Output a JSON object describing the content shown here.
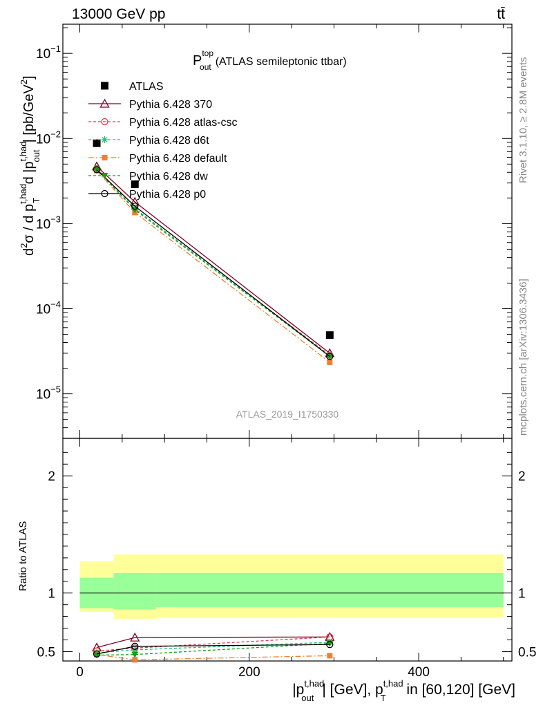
{
  "header": {
    "left": "13000 GeV pp",
    "right": "tt̄"
  },
  "side_labels": {
    "rivet": "Rivet 3.1.10, ≥ 2.8M events",
    "mcplots": "mcplots.cern.ch [arXiv:1306.3436]"
  },
  "watermark": "ATLAS_2019_I1750330",
  "chart_data": {
    "type": "scatter",
    "title": {
      "main": "P",
      "sup": "top",
      "sub": "out",
      "rest": "(ATLAS semileptonic ttbar)"
    },
    "ylabel": {
      "t1": "d",
      "t1sup": "2",
      "t2": "σ / d p",
      "t2sup": "t,had",
      "t2sub": "T",
      "t3": " d |p",
      "t3sup": "t,had",
      "t3sub": "out",
      "t4": "| [pb/GeV",
      "t4sup": "2",
      "t5": "]"
    },
    "xlabel": {
      "t1": "|p",
      "t1sup": "t,had",
      "t1sub": "out",
      "t2": "| [GeV], p",
      "t2sup": "t,had",
      "t2sub": "T",
      "t3": " in [60,120] [GeV]"
    },
    "ratio_ylabel": "Ratio to ATLAS",
    "xlim": [
      -20,
      510
    ],
    "ylim": [
      3e-06,
      0.22
    ],
    "ratio_ylim": [
      0.42,
      2.32
    ],
    "x_ticks": [
      0,
      200,
      400
    ],
    "x_tick_labels": [
      "0",
      "200",
      "400"
    ],
    "y_ticks": [
      1e-05,
      0.0001,
      0.001,
      0.01,
      0.1
    ],
    "y_tick_labels": [
      {
        "base": "10",
        "exp": "−5"
      },
      {
        "base": "10",
        "exp": "−4"
      },
      {
        "base": "10",
        "exp": "−3"
      },
      {
        "base": "10",
        "exp": "−2"
      },
      {
        "base": "10",
        "exp": "−1"
      }
    ],
    "ratio_ticks": [
      0.5,
      1,
      2
    ],
    "ratio_tick_labels": [
      "0.5",
      "1",
      "2"
    ],
    "legend_position": "top-left",
    "data": {
      "name": "ATLAS",
      "color": "#000000",
      "x": [
        20,
        65,
        295
      ],
      "y": [
        0.0088,
        0.0029,
        4.9e-05
      ]
    },
    "bins": [
      [
        0,
        40
      ],
      [
        40,
        90
      ],
      [
        90,
        500
      ]
    ],
    "bands": {
      "inner": [
        [
          0.87,
          1.13
        ],
        [
          0.86,
          1.17
        ],
        [
          0.88,
          1.17
        ]
      ],
      "outer": [
        [
          0.84,
          1.27
        ],
        [
          0.78,
          1.33
        ],
        [
          0.79,
          1.33
        ]
      ],
      "inner_color": "#99ff99",
      "outer_color": "#ffff99"
    },
    "series": [
      {
        "name": "Pythia 6.428 370",
        "color": "#800020",
        "dash": "",
        "marker": "triangle-open",
        "x": [
          20,
          65,
          295
        ],
        "y": [
          0.0047,
          0.0018,
          3e-05
        ],
        "ratio": [
          0.535,
          0.62,
          0.625
        ]
      },
      {
        "name": "Pythia 6.428 atlas-csc",
        "color": "#e8354a",
        "dash": "4,3",
        "marker": "circle-open",
        "x": [
          20,
          65,
          295
        ],
        "y": [
          0.0044,
          0.0015,
          2.85e-05
        ],
        "ratio": [
          0.505,
          0.53,
          0.625
        ]
      },
      {
        "name": "Pythia 6.428 d6t",
        "color": "#20c080",
        "dash": "4,3",
        "marker": "star",
        "x": [
          20,
          65,
          295
        ],
        "y": [
          0.0044,
          0.0015,
          2.8e-05
        ],
        "ratio": [
          0.49,
          0.515,
          0.58
        ]
      },
      {
        "name": "Pythia 6.428 default",
        "color": "#f08030",
        "dash": "8,3,2,3",
        "marker": "square",
        "x": [
          20,
          65,
          295
        ],
        "y": [
          0.0042,
          0.00135,
          2.35e-05
        ],
        "ratio": [
          0.475,
          0.43,
          0.465
        ]
      },
      {
        "name": "Pythia 6.428 dw",
        "color": "#10a010",
        "dash": "4,3",
        "marker": "triangle-down",
        "x": [
          20,
          65,
          295
        ],
        "y": [
          0.0043,
          0.00145,
          2.75e-05
        ],
        "ratio": [
          0.47,
          0.475,
          0.57
        ]
      },
      {
        "name": "Pythia 6.428 p0",
        "color": "#000000",
        "dash": "",
        "marker": "circle-open",
        "x": [
          20,
          65,
          295
        ],
        "y": [
          0.0043,
          0.0016,
          2.75e-05
        ],
        "ratio": [
          0.48,
          0.545,
          0.56
        ]
      }
    ]
  }
}
